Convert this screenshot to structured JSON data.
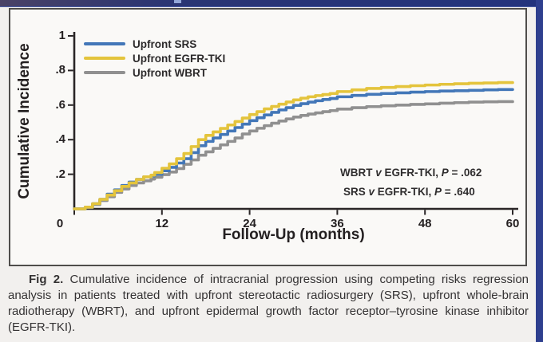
{
  "figure": {
    "caption": {
      "label": "Fig 2.",
      "text": "Cumulative incidence of intracranial progression using competing risks regression analysis in patients treated with upfront stereotactic radiosurgery (SRS), upfront whole-brain radiotherapy (WBRT), and upfront epidermal growth factor receptor–tyrosine kinase inhibitor (EGFR-TKI)."
    }
  },
  "chart_data": {
    "type": "line",
    "subtype": "cumulative-incidence-step-curves",
    "xlabel": "Follow-Up (months)",
    "ylabel": "Cumulative Incidence",
    "xlim": [
      0,
      60
    ],
    "ylim": [
      0,
      1
    ],
    "grid": false,
    "legend_position": "top-left",
    "x_ticks": [
      {
        "v": 0,
        "label": "0"
      },
      {
        "v": 12,
        "label": "12"
      },
      {
        "v": 24,
        "label": "24"
      },
      {
        "v": 36,
        "label": "36"
      },
      {
        "v": 48,
        "label": "48"
      },
      {
        "v": 60,
        "label": "60"
      }
    ],
    "y_ticks": [
      {
        "v": 1,
        "label": "1"
      },
      {
        "v": 0.8,
        "label": ".8"
      },
      {
        "v": 0.6,
        "label": ".6"
      },
      {
        "v": 0.4,
        "label": ".4"
      },
      {
        "v": 0.2,
        "label": ".2"
      }
    ],
    "x": [
      0,
      1.5,
      2.5,
      3.5,
      4.5,
      5.5,
      6.5,
      7.5,
      8.5,
      9.5,
      10.5,
      11,
      12,
      13,
      14,
      15,
      16,
      17,
      18,
      19,
      20,
      21,
      22,
      23,
      24,
      25,
      26,
      27,
      28,
      29,
      30,
      31,
      32,
      33,
      34,
      35,
      36,
      38,
      40,
      42,
      44,
      46,
      48,
      50,
      52,
      54,
      56,
      58,
      60
    ],
    "series": [
      {
        "name": "Upfront SRS",
        "color": "#4377b8",
        "values": [
          0,
          0,
          0.01,
          0.03,
          0.055,
          0.085,
          0.11,
          0.135,
          0.155,
          0.17,
          0.185,
          0.19,
          0.2,
          0.22,
          0.24,
          0.265,
          0.29,
          0.325,
          0.365,
          0.39,
          0.41,
          0.43,
          0.45,
          0.47,
          0.49,
          0.51,
          0.527,
          0.543,
          0.558,
          0.572,
          0.585,
          0.598,
          0.608,
          0.617,
          0.625,
          0.632,
          0.638,
          0.648,
          0.656,
          0.662,
          0.667,
          0.671,
          0.675,
          0.678,
          0.681,
          0.683,
          0.685,
          0.688,
          0.69
        ]
      },
      {
        "name": "Upfront EGFR-TKI",
        "color": "#e4c43c",
        "values": [
          0,
          0,
          0.01,
          0.03,
          0.055,
          0.08,
          0.105,
          0.13,
          0.15,
          0.17,
          0.185,
          0.195,
          0.21,
          0.235,
          0.26,
          0.29,
          0.32,
          0.36,
          0.4,
          0.425,
          0.445,
          0.465,
          0.485,
          0.505,
          0.525,
          0.545,
          0.562,
          0.578,
          0.592,
          0.605,
          0.618,
          0.63,
          0.64,
          0.648,
          0.655,
          0.661,
          0.667,
          0.678,
          0.688,
          0.696,
          0.702,
          0.707,
          0.712,
          0.716,
          0.72,
          0.723,
          0.726,
          0.728,
          0.73
        ]
      },
      {
        "name": "Upfront WBRT",
        "color": "#909090",
        "values": [
          0,
          0,
          0.008,
          0.025,
          0.048,
          0.07,
          0.095,
          0.115,
          0.135,
          0.15,
          0.162,
          0.172,
          0.183,
          0.198,
          0.213,
          0.233,
          0.258,
          0.283,
          0.31,
          0.33,
          0.35,
          0.37,
          0.39,
          0.41,
          0.433,
          0.45,
          0.466,
          0.481,
          0.495,
          0.508,
          0.52,
          0.531,
          0.54,
          0.548,
          0.555,
          0.562,
          0.568,
          0.577,
          0.585,
          0.591,
          0.596,
          0.6,
          0.604,
          0.607,
          0.611,
          0.614,
          0.617,
          0.619,
          0.62
        ]
      }
    ],
    "annotations": [
      {
        "pre": "WBRT ",
        "vs": "v",
        "mid": " EGFR-TKI, ",
        "p": "P",
        "post": " = .062",
        "text": "WBRT v EGFR-TKI, P = .062"
      },
      {
        "pre": "SRS ",
        "vs": "v",
        "mid": " EGFR-TKI, ",
        "p": "P",
        "post": " = .640",
        "text": "SRS v EGFR-TKI, P = .640"
      }
    ],
    "colors": {
      "axis": "#2a2627",
      "accent_bar": "#2e3f8e",
      "panel_border": "#4f4d4b",
      "panel_bg": "#faf9f7"
    }
  }
}
